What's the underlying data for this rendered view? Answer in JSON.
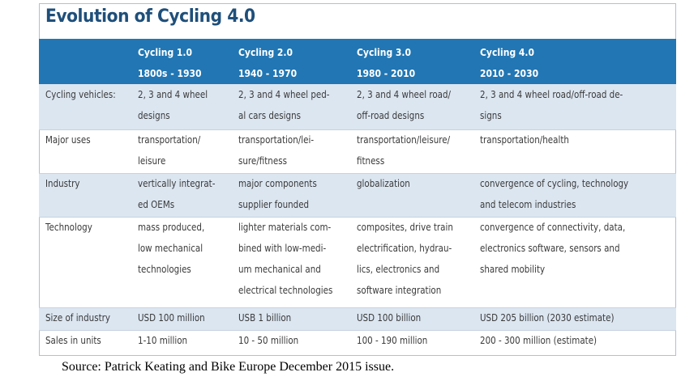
{
  "title": "Evolution of Cycling 4.0",
  "columns": [
    {
      "name": "Cycling 1.0",
      "period": "1800s - 1930"
    },
    {
      "name": "Cycling 2.0",
      "period": "1940 - 1970"
    },
    {
      "name": "Cycling 3.0",
      "period": "1980 - 2010"
    },
    {
      "name": "Cycling 4.0",
      "period": "2010 - 2030"
    }
  ],
  "rows": [
    {
      "label": "Cycling vehicles:",
      "cells": [
        [
          "2, 3 and 4 wheel",
          "designs"
        ],
        [
          "2, 3 and 4 wheel ped-",
          "al cars designs"
        ],
        [
          "2, 3 and 4 wheel road/",
          "off-road designs"
        ],
        [
          "2, 3 and 4 wheel road/off-road de-",
          "signs"
        ]
      ]
    },
    {
      "label": "Major uses",
      "cells": [
        [
          "transportation/",
          "leisure"
        ],
        [
          "transportation/lei-",
          "sure/fitness"
        ],
        [
          "transportation/leisure/",
          "fitness"
        ],
        [
          "transportation/health"
        ]
      ]
    },
    {
      "label": "Industry",
      "cells": [
        [
          "vertically integrat-",
          "ed OEMs"
        ],
        [
          "major components",
          "supplier founded"
        ],
        [
          "globalization"
        ],
        [
          "convergence of cycling, technology",
          "and telecom industries"
        ]
      ]
    },
    {
      "label": "Technology",
      "cells": [
        [
          "mass produced,",
          "low mechanical",
          "technologies"
        ],
        [
          "lighter materials com-",
          "bined with low-medi-",
          "um mechanical and",
          "electrical technologies"
        ],
        [
          "composites, drive train",
          "electrification, hydrau-",
          "lics, electronics and",
          "software integration"
        ],
        [
          "convergence of connectivity, data,",
          "electronics software, sensors and",
          "shared mobility"
        ]
      ]
    },
    {
      "label": "Size of industry",
      "cells": [
        [
          "USD 100 million"
        ],
        [
          "USB 1 billion"
        ],
        [
          "USD 100 billion"
        ],
        [
          "USD 205 billion (2030 estimate)"
        ]
      ]
    },
    {
      "label": "Sales in units",
      "cells": [
        [
          "1-10 million"
        ],
        [
          "10 - 50 million"
        ],
        [
          "100 - 190 million"
        ],
        [
          "200 - 300 million (estimate)"
        ]
      ]
    }
  ],
  "source": "Source: Patrick Keating and Bike Europe December 2015 issue."
}
